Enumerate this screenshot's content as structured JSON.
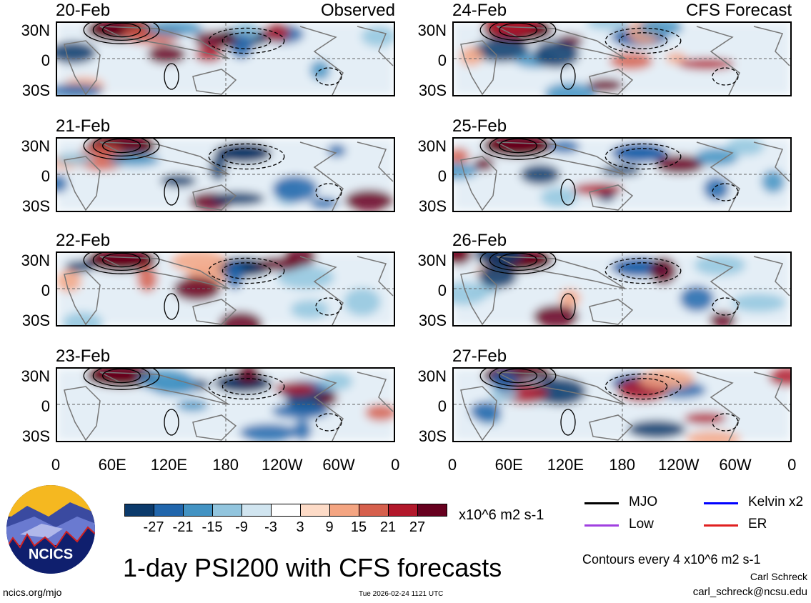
{
  "panels_left_title": "Observed",
  "panels_right_title": "CFS Forecast",
  "observed_dates": [
    "20-Feb",
    "21-Feb",
    "22-Feb",
    "23-Feb"
  ],
  "forecast_dates": [
    "24-Feb",
    "25-Feb",
    "26-Feb",
    "27-Feb"
  ],
  "lat_labels": [
    "30N",
    "0",
    "30S"
  ],
  "lon_labels": [
    "0",
    "60E",
    "120E",
    "180",
    "120W",
    "60W",
    "0"
  ],
  "colorbar": {
    "colors": [
      "#0b3a6b",
      "#2166ac",
      "#4393c3",
      "#92c5de",
      "#d1e5f0",
      "#ffffff",
      "#fddbc7",
      "#f4a582",
      "#d6604d",
      "#b2182b",
      "#67001f"
    ],
    "labels": [
      "-27",
      "-21",
      "-15",
      "-9",
      "-3",
      "3",
      "9",
      "15",
      "21",
      "27"
    ],
    "units": "x10^6 m2 s-1"
  },
  "legend": [
    {
      "label": "MJO",
      "color": "#000000"
    },
    {
      "label": "Kelvin x2",
      "color": "#0000ff"
    },
    {
      "label": "Low",
      "color": "#a040e0"
    },
    {
      "label": "ER",
      "color": "#e02020"
    }
  ],
  "title": "1-day PSI200 with CFS forecasts",
  "contours_note": "Contours every 4 x10^6 m2 s-1",
  "author": "Carl Schreck",
  "email": "carl_schreck@ncsu.edu",
  "website": "ncics.org/mjo",
  "timestamp": "Tue 2026-02-24 1121 UTC",
  "logo_text": "NCICS"
}
